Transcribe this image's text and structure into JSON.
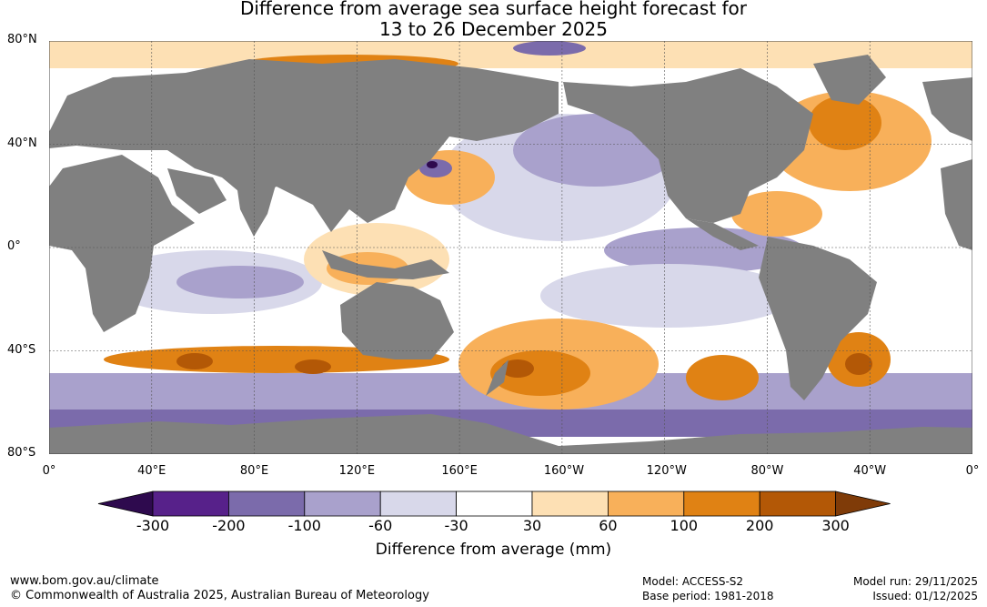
{
  "title": {
    "line1": "Difference from average sea surface height forecast for",
    "line2": "13 to 26 December 2025"
  },
  "axes": {
    "lat_labels": [
      "80°N",
      "40°N",
      "0°",
      "40°S",
      "80°S"
    ],
    "lat_values": [
      80,
      40,
      0,
      -40,
      -80
    ],
    "lon_labels": [
      "0°",
      "40°E",
      "80°E",
      "120°E",
      "160°E",
      "160°W",
      "120°W",
      "80°W",
      "40°W",
      "0°"
    ],
    "lon_values": [
      0,
      40,
      80,
      120,
      160,
      200,
      240,
      280,
      320,
      360
    ]
  },
  "colorbar": {
    "title": "Difference from average (mm)",
    "ticks": [
      "-300",
      "-200",
      "-100",
      "-60",
      "-30",
      "30",
      "60",
      "100",
      "200",
      "300"
    ],
    "colors": {
      "below_min": "#2e0a4e",
      "c1": "#57218a",
      "c2": "#7b6bab",
      "c3": "#a9a1cc",
      "c4": "#d8d8ea",
      "c5": "#ffffff",
      "c6": "#fde0b4",
      "c7": "#f8b05a",
      "c8": "#e08214",
      "c9": "#b35806",
      "above_max": "#7f3b08"
    }
  },
  "land_color": "#808080",
  "footer": {
    "website": "www.bom.gov.au/climate",
    "copyright": "© Commonwealth of Australia 2025, Australian Bureau of Meteorology",
    "model": "Model: ACCESS-S2",
    "base_period": "Base period: 1981-2018",
    "model_run": "Model run: 29/11/2025",
    "issued": "Issued: 01/12/2025"
  }
}
